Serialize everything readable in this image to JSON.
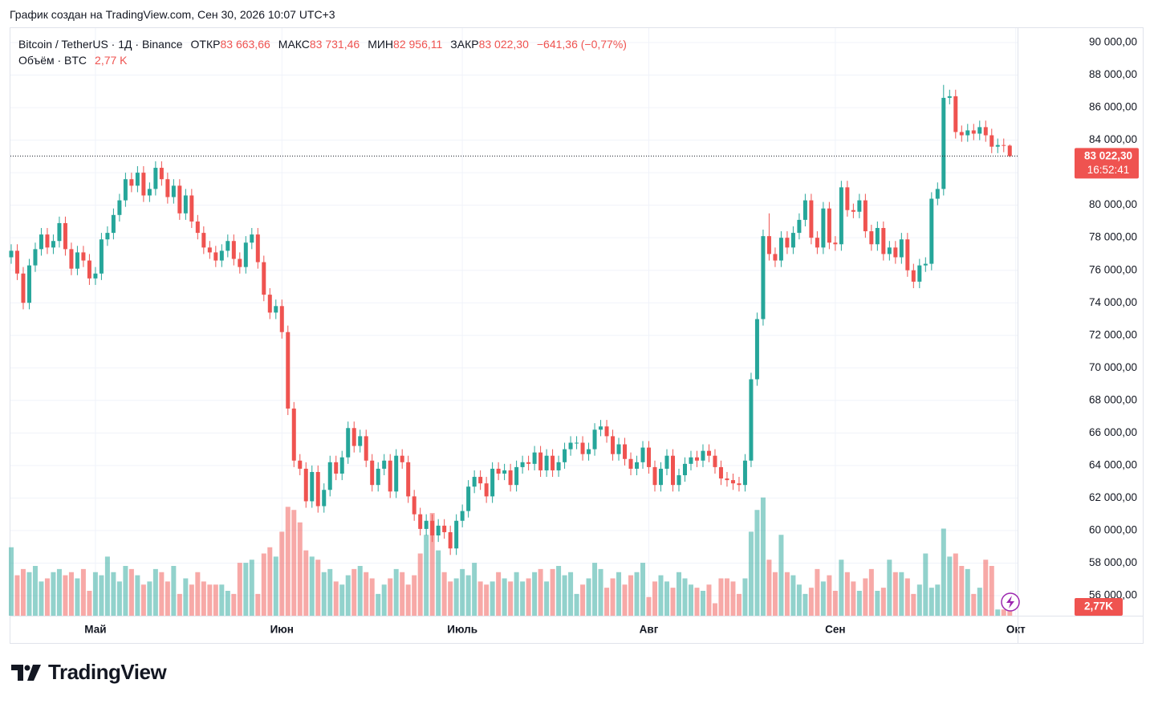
{
  "credit": "График создан на TradingView.com, Сен 30, 2026 10:07 UTC+3",
  "logo": "TradingView",
  "chart_data": {
    "type": "candlestick",
    "symbol": "Bitcoin / TetherUS · 1Д · Binance",
    "legend": [
      {
        "key": "ОТКР",
        "label": "83 663,66"
      },
      {
        "key": "МАКС",
        "label": "83 731,46"
      },
      {
        "key": "МИН",
        "label": "82 956,11"
      },
      {
        "key": "ЗАКР",
        "label": "83 022,30"
      }
    ],
    "change_label": "−641,36 (−0,77%)",
    "volume_title": "Объём · BTC",
    "volume_label": "2,77 K",
    "volume_axis_label": "2,77K",
    "countdown": "16:52:41",
    "up_color": "#26a69a",
    "down_color": "#ef5350",
    "xlim": [
      -0.13,
      167.3
    ],
    "xticks": [
      {
        "value": 14,
        "label": "Май"
      },
      {
        "value": 45,
        "label": "Июн"
      },
      {
        "value": 75,
        "label": "Июль"
      },
      {
        "value": 106,
        "label": "Авг"
      },
      {
        "value": 137,
        "label": "Сен"
      },
      {
        "value": 167,
        "label": "Окт"
      }
    ],
    "ylim": [
      54765,
      90889
    ],
    "yticks": [
      {
        "value": 56000,
        "label": "56 000,00"
      },
      {
        "value": 58000,
        "label": "58 000,00"
      },
      {
        "value": 60000,
        "label": "60 000,00"
      },
      {
        "value": 62000,
        "label": "62 000,00"
      },
      {
        "value": 64000,
        "label": "64 000,00"
      },
      {
        "value": 66000,
        "label": "66 000,00"
      },
      {
        "value": 68000,
        "label": "68 000,00"
      },
      {
        "value": 70000,
        "label": "70 000,00"
      },
      {
        "value": 72000,
        "label": "72 000,00"
      },
      {
        "value": 74000,
        "label": "74 000,00"
      },
      {
        "value": 76000,
        "label": "76 000,00"
      },
      {
        "value": 78000,
        "label": "78 000,00"
      },
      {
        "value": 80000,
        "label": "80 000,00"
      },
      {
        "value": 82000,
        "label": "82 000,00"
      },
      {
        "value": 84000,
        "label": "84 000,00"
      },
      {
        "value": 86000,
        "label": "86 000,00"
      },
      {
        "value": 88000,
        "label": "88 000,00"
      },
      {
        "value": 90000,
        "label": "90 000,00"
      }
    ],
    "volume_lim": [
      0,
      40000
    ],
    "grid": true,
    "open": [
      76800,
      77200,
      75800,
      74000,
      76300,
      77300,
      78200,
      77400,
      77800,
      78900,
      77300,
      76100,
      77100,
      76600,
      75500,
      75800,
      77900,
      78300,
      79400,
      80300,
      81600,
      81200,
      82000,
      80600,
      81000,
      82300,
      81600,
      80500,
      81200,
      79500,
      80600,
      79000,
      78300,
      77400,
      77100,
      76600,
      77200,
      77800,
      76700,
      76200,
      77700,
      78200,
      76500,
      74500,
      73400,
      73800,
      72200,
      67500,
      64300,
      63800,
      61800,
      63600,
      61500,
      62500,
      64200,
      63500,
      64500,
      66300,
      65200,
      65800,
      64300,
      62800,
      63800,
      64300,
      62400,
      64600,
      64200,
      62100,
      61000,
      60100,
      60600,
      59700,
      60300,
      59900,
      58900,
      60600,
      61200,
      62700,
      63300,
      62900,
      62100,
      63800,
      63500,
      63700,
      62800,
      63900,
      64200,
      64100,
      64800,
      63700,
      64600,
      63700,
      64200,
      65000,
      65400,
      65400,
      64700,
      65000,
      66200,
      66400,
      65800,
      64700,
      65300,
      64400,
      63800,
      64200,
      65100,
      63900,
      62800,
      63800,
      64600,
      62800,
      63400,
      64100,
      64500,
      64300,
      64900,
      64600,
      63900,
      63200,
      63100,
      62900,
      62800,
      64300,
      69300,
      73000,
      78100,
      77000,
      76600,
      78000,
      77400,
      78300,
      79100,
      80300,
      78000,
      77400,
      79800,
      77700,
      77600,
      81100,
      79700,
      79600,
      80300,
      78400,
      77600,
      78600,
      77000,
      77400,
      76800,
      77900,
      76000,
      75300,
      76300,
      76400,
      80400,
      81000,
      86600,
      86700,
      84500,
      84300,
      84600,
      84400,
      84800,
      84300,
      83600,
      83700,
      83663.66
    ],
    "high": [
      77600,
      77600,
      76200,
      76700,
      77700,
      78600,
      78600,
      78200,
      79300,
      79300,
      77700,
      77500,
      77500,
      77000,
      76200,
      78300,
      78700,
      79800,
      80700,
      82000,
      82000,
      82400,
      82400,
      81400,
      82700,
      82700,
      82000,
      81600,
      81600,
      81000,
      81000,
      79400,
      78700,
      77800,
      77500,
      77600,
      78200,
      78200,
      77100,
      78100,
      78600,
      78600,
      76900,
      74900,
      74200,
      74200,
      72600,
      67900,
      64700,
      64200,
      64000,
      64000,
      62900,
      64600,
      64600,
      64900,
      66700,
      66700,
      66200,
      66200,
      64700,
      64200,
      64700,
      64700,
      65000,
      65000,
      64600,
      62500,
      61400,
      61000,
      61000,
      60700,
      60700,
      60300,
      61000,
      61600,
      63100,
      63700,
      63700,
      63300,
      64200,
      64200,
      64100,
      64100,
      64300,
      64600,
      64600,
      65200,
      65200,
      65000,
      65000,
      64600,
      65400,
      65800,
      65800,
      65800,
      65400,
      66600,
      66800,
      66800,
      66200,
      65700,
      65700,
      64800,
      64600,
      65500,
      65500,
      64300,
      64200,
      65000,
      65000,
      63800,
      64500,
      64900,
      64900,
      65300,
      65300,
      65000,
      64300,
      63600,
      63500,
      63300,
      64700,
      69700,
      73400,
      78500,
      79500,
      77400,
      78400,
      78400,
      78700,
      79500,
      80700,
      80700,
      78400,
      80200,
      80200,
      78100,
      81500,
      81500,
      80100,
      80700,
      80700,
      78800,
      79000,
      79000,
      77800,
      77800,
      78300,
      78300,
      76400,
      76700,
      76800,
      80800,
      81400,
      87400,
      87100,
      87100,
      84900,
      85000,
      85000,
      85200,
      85200,
      84700,
      84100,
      84100,
      83731.46
    ],
    "low": [
      76400,
      75400,
      73600,
      73600,
      75900,
      76900,
      77000,
      77000,
      77400,
      76900,
      75700,
      75700,
      76200,
      75100,
      75100,
      75400,
      77500,
      77900,
      79000,
      79900,
      80800,
      80800,
      80200,
      80200,
      80600,
      81200,
      80100,
      80100,
      79100,
      79100,
      78600,
      77900,
      77000,
      76700,
      76200,
      76200,
      76800,
      76300,
      75800,
      75800,
      77300,
      76100,
      74100,
      73000,
      73000,
      71800,
      67100,
      63900,
      63400,
      61400,
      61400,
      61100,
      61100,
      62100,
      63100,
      63100,
      64100,
      64800,
      64800,
      63900,
      62400,
      62400,
      63400,
      62000,
      62000,
      63800,
      61700,
      60600,
      59700,
      59700,
      59300,
      59300,
      59500,
      58500,
      58500,
      60200,
      60800,
      62300,
      62500,
      61700,
      61700,
      63100,
      63100,
      62400,
      62400,
      63500,
      63700,
      63700,
      63300,
      63300,
      63300,
      63300,
      63800,
      64600,
      65000,
      64300,
      64300,
      64600,
      65800,
      65400,
      64300,
      64300,
      64000,
      63400,
      63400,
      63800,
      63500,
      62400,
      62400,
      63400,
      62400,
      62400,
      63000,
      63700,
      63900,
      63900,
      64200,
      63500,
      62800,
      62700,
      62500,
      62400,
      62400,
      63900,
      68900,
      72600,
      76600,
      76200,
      76200,
      77000,
      77000,
      77900,
      78700,
      77600,
      77000,
      77000,
      77300,
      77200,
      77200,
      79300,
      79200,
      79200,
      78000,
      77200,
      77200,
      76600,
      76600,
      76400,
      76400,
      75600,
      74900,
      74900,
      75900,
      76000,
      80000,
      80600,
      86200,
      84100,
      83900,
      83900,
      84000,
      84000,
      83900,
      83200,
      83200,
      83260,
      82956.11
    ],
    "close": [
      77200,
      75800,
      74000,
      76300,
      77300,
      78200,
      77400,
      77800,
      78900,
      77300,
      76100,
      77100,
      76600,
      75500,
      75800,
      77900,
      78300,
      79400,
      80300,
      81600,
      81200,
      82000,
      80600,
      81000,
      82300,
      81600,
      80500,
      81200,
      79500,
      80600,
      79000,
      78300,
      77400,
      77100,
      76600,
      77200,
      77800,
      76700,
      76200,
      77700,
      78200,
      76500,
      74500,
      73400,
      73800,
      72200,
      67500,
      64300,
      63800,
      61800,
      63600,
      61500,
      62500,
      64200,
      63500,
      64500,
      66300,
      65200,
      65800,
      64300,
      62800,
      63800,
      64300,
      62400,
      64600,
      64200,
      62100,
      61000,
      60100,
      60600,
      59700,
      60300,
      59900,
      58900,
      60600,
      61200,
      62700,
      63300,
      62900,
      62100,
      63800,
      63500,
      63700,
      62800,
      63900,
      64200,
      64100,
      64800,
      63700,
      64600,
      63700,
      64200,
      65000,
      65400,
      65400,
      64700,
      65000,
      66200,
      66400,
      65800,
      64700,
      65300,
      64400,
      63800,
      64200,
      65100,
      63900,
      62800,
      63800,
      64600,
      62800,
      63400,
      64100,
      64500,
      64300,
      64900,
      64600,
      63900,
      63200,
      63100,
      62900,
      62800,
      64300,
      69300,
      73000,
      78100,
      77000,
      76600,
      78000,
      77400,
      78300,
      79100,
      80300,
      78000,
      77400,
      79800,
      77700,
      77600,
      81100,
      79700,
      79600,
      80300,
      78400,
      77600,
      78600,
      77000,
      77400,
      76800,
      77900,
      76000,
      75300,
      76300,
      76400,
      80400,
      81000,
      86600,
      86700,
      84500,
      84300,
      84600,
      84400,
      84800,
      84300,
      83600,
      83700,
      83663.66,
      83022.3
    ],
    "volume": [
      22000,
      13000,
      15000,
      14000,
      16000,
      11000,
      12000,
      14000,
      15000,
      13000,
      14000,
      12000,
      15000,
      8000,
      14000,
      13000,
      19000,
      14000,
      11000,
      16000,
      15000,
      13000,
      10000,
      11000,
      15000,
      14000,
      11000,
      16000,
      7000,
      12000,
      10000,
      14000,
      11000,
      10000,
      10000,
      10000,
      8000,
      7000,
      17000,
      17000,
      18000,
      7000,
      20000,
      22000,
      19000,
      27000,
      35000,
      34000,
      30000,
      21000,
      19000,
      18000,
      14000,
      15000,
      11000,
      10000,
      13000,
      15000,
      16000,
      14000,
      12000,
      7000,
      10000,
      12000,
      15000,
      14000,
      10000,
      13000,
      20000,
      26000,
      33000,
      21000,
      14000,
      11000,
      12000,
      15000,
      13000,
      17000,
      11000,
      10000,
      11000,
      14000,
      12000,
      11000,
      14000,
      11000,
      12000,
      14000,
      15000,
      11000,
      15000,
      16000,
      13000,
      14000,
      7000,
      10000,
      12000,
      17000,
      15000,
      9000,
      12000,
      14000,
      10000,
      13000,
      14000,
      17000,
      6000,
      11000,
      13000,
      11000,
      9000,
      14000,
      12000,
      10000,
      9000,
      8000,
      10000,
      4000,
      12000,
      12000,
      11000,
      7000,
      12000,
      27000,
      34000,
      38000,
      18000,
      14000,
      26000,
      14000,
      13000,
      10000,
      7000,
      9000,
      15000,
      11000,
      13000,
      8000,
      18000,
      14000,
      11000,
      8000,
      12000,
      15000,
      8000,
      9000,
      18000,
      14000,
      14000,
      12000,
      7000,
      10000,
      20000,
      9000,
      10000,
      28000,
      19000,
      20000,
      16000,
      15000,
      7000,
      9000,
      18000,
      16000,
      2000,
      2000,
      2770
    ]
  }
}
